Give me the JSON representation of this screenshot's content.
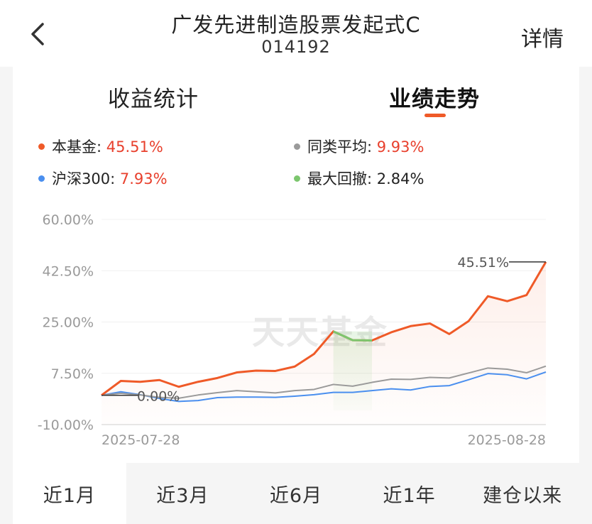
{
  "header": {
    "title": "广发先进制造股票发起式C",
    "code": "014192",
    "detail_label": "详情"
  },
  "tabs": [
    {
      "label": "收益统计",
      "active": false
    },
    {
      "label": "业绩走势",
      "active": true
    }
  ],
  "legend": [
    {
      "label": "本基金:",
      "value": "45.51%",
      "color": "#ef5a28"
    },
    {
      "label": "同类平均:",
      "value": "9.93%",
      "color": "#9a9a9a"
    },
    {
      "label": "沪深300:",
      "value": "7.93%",
      "color": "#4a8fef"
    },
    {
      "label": "最大回撤:",
      "value": "2.84%",
      "color": "#7cc66e"
    }
  ],
  "chart_data": {
    "type": "line",
    "y_ticks": [
      "60.00%",
      "42.50%",
      "25.00%",
      "7.50%",
      "-10.00%"
    ],
    "ylim": [
      -10,
      60
    ],
    "x_labels": [
      "2025-07-28",
      "2025-08-28"
    ],
    "watermark": "天天基金",
    "start_label": "0.00%",
    "end_label": "45.51%",
    "drawdown_range": [
      12,
      14
    ],
    "series": [
      {
        "name": "本基金",
        "color": "#ef5a28",
        "values": [
          0,
          4.9,
          4.6,
          5.2,
          2.9,
          4.6,
          5.9,
          7.8,
          8.4,
          8.3,
          9.8,
          14.1,
          21.8,
          18.8,
          18.7,
          21.5,
          23.6,
          24.5,
          20.9,
          25.3,
          33.8,
          32.1,
          34.2,
          45.51
        ]
      },
      {
        "name": "同类平均",
        "color": "#9a9a9a",
        "values": [
          0,
          0.7,
          0.1,
          -0.7,
          -1.0,
          0.1,
          0.9,
          1.6,
          1.2,
          0.8,
          1.6,
          2.0,
          3.7,
          3.1,
          4.4,
          5.5,
          5.4,
          6.1,
          5.9,
          7.6,
          9.3,
          8.9,
          7.7,
          9.93
        ]
      },
      {
        "name": "沪深300",
        "color": "#4a8fef",
        "values": [
          0,
          1.2,
          0.2,
          -1.1,
          -2.1,
          -1.8,
          -0.8,
          -0.6,
          -0.6,
          -0.7,
          -0.3,
          0.2,
          1.0,
          1.0,
          1.6,
          2.2,
          1.8,
          3.0,
          3.3,
          5.3,
          7.4,
          7.0,
          5.6,
          7.93
        ]
      }
    ]
  },
  "periods": [
    {
      "label": "近1月",
      "active": true
    },
    {
      "label": "近3月",
      "active": false
    },
    {
      "label": "近6月",
      "active": false
    },
    {
      "label": "近1年",
      "active": false
    },
    {
      "label": "建仓以来",
      "active": false
    }
  ]
}
